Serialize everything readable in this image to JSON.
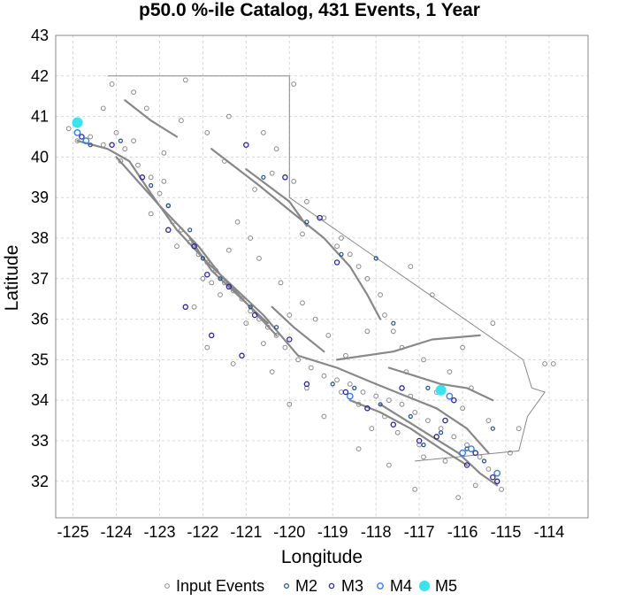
{
  "chart_data": {
    "type": "scatter",
    "title": "p50.0 %-ile Catalog, 431 Events, 1 Year",
    "xlabel": "Longitude",
    "ylabel": "Latitude",
    "xlim": [
      -125.4,
      -113.1
    ],
    "ylim": [
      31.1,
      43.0
    ],
    "xticks": [
      -125,
      -124,
      -123,
      -122,
      -121,
      -120,
      -119,
      -118,
      -117,
      -116,
      -115,
      -114
    ],
    "yticks": [
      32,
      33,
      34,
      35,
      36,
      37,
      38,
      39,
      40,
      41,
      42,
      43
    ],
    "grid": true,
    "legend_position": "bottom",
    "colors": {
      "input": "#8a8a8a",
      "faults": "#888888",
      "m2": "#1f4e8c",
      "m3": "#2a1fb0",
      "m4": "#2f7dff",
      "m5": "#33e6f0",
      "border": "#888888",
      "grid": "#d8d8d8"
    },
    "series": [
      {
        "name": "Input Events",
        "points": [
          [
            -124.9,
            40.4
          ],
          [
            -124.6,
            40.5
          ],
          [
            -124.3,
            40.3
          ],
          [
            -124.0,
            40.6
          ],
          [
            -123.8,
            40.2
          ],
          [
            -123.6,
            40.4
          ],
          [
            -123.5,
            39.8
          ],
          [
            -123.2,
            39.5
          ],
          [
            -123.0,
            39.1
          ],
          [
            -122.8,
            38.8
          ],
          [
            -122.7,
            38.4
          ],
          [
            -122.5,
            38.2
          ],
          [
            -122.3,
            37.9
          ],
          [
            -122.1,
            37.6
          ],
          [
            -121.9,
            37.4
          ],
          [
            -121.7,
            37.2
          ],
          [
            -121.5,
            36.9
          ],
          [
            -121.3,
            36.7
          ],
          [
            -121.1,
            36.5
          ],
          [
            -120.9,
            36.2
          ],
          [
            -120.7,
            36.0
          ],
          [
            -120.5,
            35.8
          ],
          [
            -120.3,
            35.6
          ],
          [
            -120.1,
            35.3
          ],
          [
            -119.8,
            35.0
          ],
          [
            -119.5,
            34.8
          ],
          [
            -119.2,
            34.6
          ],
          [
            -118.9,
            34.5
          ],
          [
            -118.6,
            34.4
          ],
          [
            -118.3,
            34.2
          ],
          [
            -118.0,
            34.1
          ],
          [
            -117.7,
            34.0
          ],
          [
            -117.4,
            33.9
          ],
          [
            -117.1,
            33.7
          ],
          [
            -116.8,
            33.5
          ],
          [
            -116.5,
            33.3
          ],
          [
            -116.2,
            33.1
          ],
          [
            -115.9,
            32.9
          ],
          [
            -115.6,
            32.6
          ],
          [
            -115.4,
            32.3
          ],
          [
            -115.2,
            32.0
          ],
          [
            -115.1,
            31.8
          ],
          [
            -116.0,
            33.8
          ],
          [
            -116.6,
            34.2
          ],
          [
            -117.2,
            34.1
          ],
          [
            -117.8,
            33.6
          ],
          [
            -118.4,
            33.9
          ],
          [
            -118.8,
            34.2
          ],
          [
            -119.6,
            34.3
          ],
          [
            -120.4,
            34.7
          ],
          [
            -120.6,
            35.4
          ],
          [
            -121.0,
            35.9
          ],
          [
            -121.6,
            36.6
          ],
          [
            -122.0,
            37.0
          ],
          [
            -122.6,
            37.8
          ],
          [
            -123.2,
            38.6
          ],
          [
            -121.2,
            38.4
          ],
          [
            -120.8,
            39.2
          ],
          [
            -120.4,
            39.6
          ],
          [
            -119.9,
            39.4
          ],
          [
            -119.6,
            38.9
          ],
          [
            -119.2,
            38.5
          ],
          [
            -118.8,
            38.0
          ],
          [
            -118.6,
            37.6
          ],
          [
            -118.4,
            37.3
          ],
          [
            -118.2,
            37.0
          ],
          [
            -117.9,
            36.6
          ],
          [
            -117.8,
            36.1
          ],
          [
            -117.6,
            35.7
          ],
          [
            -117.4,
            35.3
          ],
          [
            -116.9,
            35.0
          ],
          [
            -116.3,
            34.7
          ],
          [
            -120.7,
            37.5
          ],
          [
            -120.2,
            36.9
          ],
          [
            -119.7,
            36.4
          ],
          [
            -119.4,
            36.0
          ],
          [
            -121.9,
            40.6
          ],
          [
            -122.5,
            40.9
          ],
          [
            -123.3,
            41.2
          ],
          [
            -121.4,
            41.0
          ],
          [
            -120.6,
            40.6
          ],
          [
            -119.9,
            41.8
          ],
          [
            -122.4,
            41.9
          ],
          [
            -123.6,
            41.6
          ],
          [
            -124.1,
            41.8
          ],
          [
            -120.3,
            40.2
          ],
          [
            -121.5,
            39.9
          ],
          [
            -122.9,
            40.1
          ],
          [
            -117.0,
            32.9
          ],
          [
            -116.4,
            32.5
          ],
          [
            -116.9,
            32.6
          ],
          [
            -117.5,
            33.2
          ],
          [
            -118.1,
            33.3
          ],
          [
            -117.3,
            34.7
          ],
          [
            -116.0,
            35.3
          ],
          [
            -115.4,
            33.5
          ],
          [
            -114.9,
            32.7
          ],
          [
            -115.8,
            34.3
          ],
          [
            -118.7,
            35.1
          ],
          [
            -119.1,
            35.6
          ],
          [
            -120.0,
            36.1
          ],
          [
            -118.2,
            35.7
          ],
          [
            -121.8,
            36.9
          ],
          [
            -122.9,
            39.4
          ],
          [
            -123.9,
            39.9
          ],
          [
            -124.3,
            41.2
          ],
          [
            -125.1,
            40.7
          ],
          [
            -114.7,
            33.3
          ],
          [
            -114.1,
            34.9
          ],
          [
            -113.9,
            34.9
          ],
          [
            -115.3,
            35.9
          ],
          [
            -116.7,
            36.6
          ],
          [
            -117.2,
            37.3
          ],
          [
            -118.9,
            37.8
          ],
          [
            -119.7,
            38.1
          ],
          [
            -120.9,
            38.0
          ],
          [
            -121.4,
            37.7
          ],
          [
            -122.2,
            36.3
          ],
          [
            -121.9,
            35.3
          ],
          [
            -121.3,
            34.9
          ],
          [
            -120.0,
            33.9
          ],
          [
            -119.2,
            33.6
          ],
          [
            -118.4,
            32.8
          ],
          [
            -117.7,
            32.4
          ],
          [
            -117.1,
            31.8
          ],
          [
            -116.1,
            31.6
          ],
          [
            -115.7,
            31.9
          ]
        ]
      },
      {
        "name": "M2",
        "points": [
          [
            -124.6,
            40.3
          ],
          [
            -123.9,
            40.4
          ],
          [
            -122.8,
            38.8
          ],
          [
            -122.0,
            37.5
          ],
          [
            -121.6,
            37.0
          ],
          [
            -120.9,
            36.3
          ],
          [
            -120.3,
            35.8
          ],
          [
            -119.0,
            34.4
          ],
          [
            -118.5,
            34.3
          ],
          [
            -117.9,
            33.9
          ],
          [
            -117.2,
            33.6
          ],
          [
            -116.5,
            33.2
          ],
          [
            -115.9,
            32.8
          ],
          [
            -115.5,
            32.5
          ],
          [
            -116.8,
            34.3
          ],
          [
            -118.0,
            37.5
          ],
          [
            -119.6,
            38.4
          ],
          [
            -118.8,
            37.6
          ],
          [
            -120.6,
            39.5
          ],
          [
            -117.6,
            35.9
          ],
          [
            -115.3,
            33.3
          ],
          [
            -116.9,
            32.9
          ],
          [
            -122.3,
            38.2
          ],
          [
            -123.2,
            39.3
          ]
        ]
      },
      {
        "name": "M3",
        "points": [
          [
            -124.8,
            40.5
          ],
          [
            -124.1,
            40.3
          ],
          [
            -123.4,
            39.5
          ],
          [
            -122.8,
            38.2
          ],
          [
            -122.2,
            37.8
          ],
          [
            -121.9,
            37.1
          ],
          [
            -121.4,
            36.8
          ],
          [
            -120.8,
            36.1
          ],
          [
            -120.0,
            35.5
          ],
          [
            -119.6,
            34.4
          ],
          [
            -118.7,
            34.2
          ],
          [
            -118.2,
            33.8
          ],
          [
            -117.6,
            33.4
          ],
          [
            -117.0,
            33.0
          ],
          [
            -116.4,
            33.5
          ],
          [
            -115.7,
            32.7
          ],
          [
            -115.3,
            32.1
          ],
          [
            -115.2,
            32.0
          ],
          [
            -116.2,
            34.0
          ],
          [
            -117.4,
            34.3
          ],
          [
            -118.9,
            37.4
          ],
          [
            -119.3,
            38.5
          ],
          [
            -120.1,
            39.5
          ],
          [
            -121.0,
            40.3
          ],
          [
            -122.4,
            36.3
          ],
          [
            -121.8,
            35.6
          ],
          [
            -121.1,
            35.1
          ],
          [
            -116.6,
            33.1
          ],
          [
            -115.9,
            32.4
          ]
        ]
      },
      {
        "name": "M4",
        "points": [
          [
            -124.9,
            40.6
          ],
          [
            -124.7,
            40.4
          ],
          [
            -118.6,
            34.1
          ],
          [
            -115.2,
            32.2
          ],
          [
            -116.0,
            32.7
          ],
          [
            -115.8,
            32.8
          ],
          [
            -116.3,
            34.1
          ]
        ]
      },
      {
        "name": "M5",
        "points": [
          [
            -124.9,
            40.85
          ],
          [
            -116.5,
            34.25
          ]
        ]
      }
    ]
  }
}
